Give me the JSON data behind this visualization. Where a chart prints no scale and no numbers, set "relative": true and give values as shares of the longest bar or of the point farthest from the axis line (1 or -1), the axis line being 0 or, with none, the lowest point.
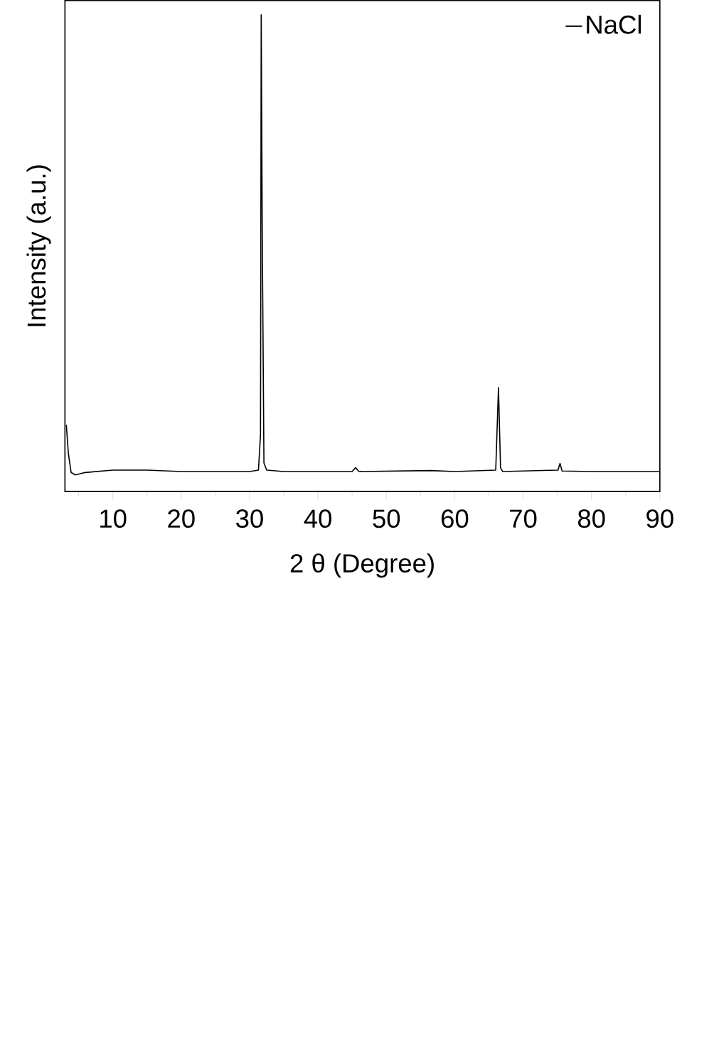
{
  "chart_data": {
    "type": "line",
    "relative": true,
    "xlabel": "2 θ (Degree)",
    "ylabel": "Intensity (a.u.)",
    "xlim": [
      3,
      90
    ],
    "xticks": [
      {
        "value": 5,
        "label": null
      },
      10,
      {
        "value": 15,
        "label": null
      },
      20,
      {
        "value": 25,
        "label": null
      },
      30,
      {
        "value": 35,
        "label": null
      },
      40,
      {
        "value": 45,
        "label": null
      },
      50,
      {
        "value": 55,
        "label": null
      },
      60,
      {
        "value": 65,
        "label": null
      },
      70,
      {
        "value": 75,
        "label": null
      },
      80,
      {
        "value": 85,
        "label": null
      },
      90
    ],
    "legend": "top right",
    "grid": false,
    "marker": "none",
    "line_style": "solid",
    "x": [
      3.2,
      3.5,
      3.9,
      4.5,
      6,
      10,
      15,
      20,
      25,
      30,
      31.3,
      31.6,
      31.7,
      31.85,
      32.1,
      32.5,
      35,
      45,
      45.5,
      46,
      56.5,
      60,
      66.0,
      66.4,
      66.7,
      67,
      75.1,
      75.4,
      75.7,
      80,
      90
    ],
    "series": [
      {
        "name": "NaCl",
        "color": "#000000",
        "values": [
          0.14,
          0.08,
          0.04,
          0.035,
          0.04,
          0.045,
          0.045,
          0.042,
          0.042,
          0.042,
          0.045,
          0.12,
          1.0,
          0.55,
          0.06,
          0.045,
          0.042,
          0.042,
          0.05,
          0.042,
          0.044,
          0.042,
          0.045,
          0.218,
          0.05,
          0.042,
          0.045,
          0.059,
          0.043,
          0.042,
          0.042
        ]
      }
    ]
  }
}
